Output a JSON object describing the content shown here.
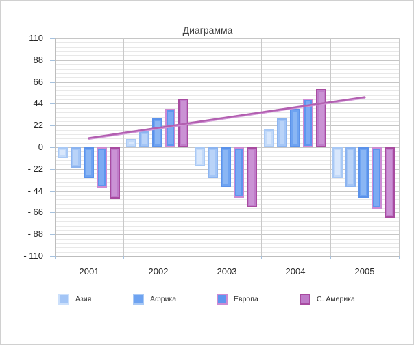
{
  "chart_data": {
    "type": "bar",
    "title": "Диаграмма",
    "categories": [
      "2001",
      "2002",
      "2003",
      "2004",
      "2005"
    ],
    "series": [
      {
        "name": "unlabeled-series-1",
        "in_legend": false,
        "fill": "#c3daf9",
        "border": "#a9c9f5",
        "inner": "#d8e7fc",
        "values": [
          -11,
          8,
          -19,
          18,
          -31
        ]
      },
      {
        "name": "Азия",
        "in_legend": true,
        "fill": "#a3c5f6",
        "border": "#8cb4f0",
        "inner": "#b9d3f8",
        "legend_border": "#cce0fb",
        "values": [
          -21,
          16,
          -31,
          29,
          -40
        ]
      },
      {
        "name": "Африка",
        "in_legend": true,
        "fill": "#6ea3f1",
        "border": "#5b92ea",
        "inner": "#8ab6f4",
        "legend_border": "#a9c9f5",
        "values": [
          -31,
          29,
          -40,
          39,
          -51
        ]
      },
      {
        "name": "Европа",
        "in_legend": true,
        "fill": "#5e95ef",
        "border": "#cd8bd3",
        "inner": "#7caaf3",
        "legend_border": "#cd8bd3",
        "values": [
          -41,
          39,
          -51,
          49,
          -62
        ]
      },
      {
        "name": "С. Америка",
        "in_legend": true,
        "fill": "#bf7cc9",
        "border": "#a84ba0",
        "inner": "#ca92d4",
        "legend_border": "#a84ba0",
        "values": [
          -52,
          49,
          -61,
          59,
          -71
        ]
      }
    ],
    "trendline": {
      "color": "#b25fb0",
      "highlight_color": "#d195d6",
      "spans_categories": [
        "2001",
        "2005"
      ],
      "values_at_ends": [
        9,
        50.5
      ]
    },
    "y_axis": {
      "min": -110,
      "max": 110,
      "major_step": 22,
      "minor_step": 4.4,
      "tick_labels": [
        "110",
        "88",
        "66",
        "44",
        "22",
        "0",
        "- 22",
        "- 44",
        "- 66",
        "- 88",
        "- 110"
      ]
    },
    "x_axis": {
      "tick_labels": [
        "2001",
        "2002",
        "2003",
        "2004",
        "2005"
      ]
    },
    "legend": {
      "position": "bottom",
      "labels": [
        "Азия",
        "Африка",
        "Европа",
        "С. Америка"
      ]
    },
    "grid": true
  }
}
